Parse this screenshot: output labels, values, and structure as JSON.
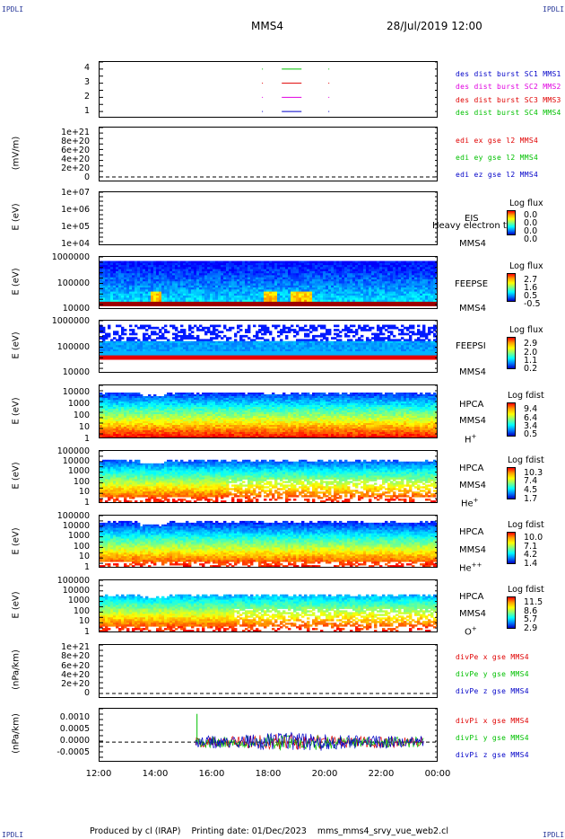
{
  "header": {
    "corner_tl": "IPDLI",
    "corner_tr": "IPDLI",
    "corner_bl": "IPDLI",
    "corner_br": "IPDLI",
    "spacecraft": "MMS4",
    "datetime": "28/Jul/2019 12:00"
  },
  "footer": {
    "text": "Produced by cl (IRAP)    Printing date: 01/Dec/2023    mms_mms4_srvy_vue_web2.cl"
  },
  "colors": {
    "blue": "#0000c8",
    "magenta": "#e000e0",
    "red": "#e00000",
    "green": "#00c000"
  },
  "xaxis": {
    "ticks": [
      "12:00",
      "14:00",
      "16:00",
      "18:00",
      "20:00",
      "22:00",
      "00:00"
    ],
    "range_hours": [
      12,
      24
    ]
  },
  "chart_data": [
    {
      "type": "line",
      "panel": "availability",
      "yticks": [
        "4",
        "3",
        "2",
        "1"
      ],
      "ylim": [
        0.5,
        4.5
      ],
      "legend": [
        {
          "text": "des dist burst SC1 MMS1",
          "color": "#0000c8"
        },
        {
          "text": "des dist burst SC2 MMS2",
          "color": "#e000e0"
        },
        {
          "text": "des dist burst SC3 MMS3",
          "color": "#e00000"
        },
        {
          "text": "des dist burst SC4 MMS4",
          "color": "#00c000"
        }
      ],
      "series": [
        {
          "name": "des dist burst SC4 MMS4",
          "y": 4,
          "segments": [
            [
              17.75,
              17.76
            ],
            [
              18.45,
              19.15
            ],
            [
              20.1,
              20.11
            ]
          ]
        },
        {
          "name": "des dist burst SC3 MMS3",
          "y": 3,
          "segments": [
            [
              17.75,
              17.76
            ],
            [
              18.45,
              19.15
            ],
            [
              20.1,
              20.11
            ]
          ]
        },
        {
          "name": "des dist burst SC2 MMS2",
          "y": 2,
          "segments": [
            [
              17.75,
              17.76
            ],
            [
              18.45,
              19.15
            ],
            [
              20.1,
              20.11
            ]
          ]
        },
        {
          "name": "des dist burst SC1 MMS1",
          "y": 1,
          "segments": [
            [
              17.75,
              17.76
            ],
            [
              18.45,
              19.15
            ],
            [
              20.1,
              20.11
            ]
          ]
        }
      ]
    },
    {
      "type": "line",
      "panel": "edi",
      "ylabel": "(mV/m)",
      "yticks": [
        "1e+21",
        "8e+20",
        "6e+20",
        "4e+20",
        "2e+20",
        "0"
      ],
      "legend": [
        {
          "text": "edi ex gse l2 MMS4",
          "color": "#e00000"
        },
        {
          "text": "edi ey gse l2 MMS4",
          "color": "#00c000"
        },
        {
          "text": "edi ez gse l2 MMS4",
          "color": "#0000c8"
        }
      ],
      "reference_line": 0
    },
    {
      "type": "heatmap",
      "panel": "eis",
      "ylabel": "E (eV)",
      "yticks": [
        "1e+07",
        "1e+06",
        "1e+05",
        "1e+04"
      ],
      "labels": [
        "EIS",
        "MMS4"
      ],
      "overlay_text": "Heavy electron to",
      "colorbar": {
        "title": "Log flux",
        "ticks": [
          "0.0",
          "0.0",
          "0.0",
          "0.0"
        ]
      }
    },
    {
      "type": "heatmap",
      "panel": "feeps_e",
      "ylabel": "E (eV)",
      "yticks": [
        "1000000",
        "100000",
        "10000"
      ],
      "labels": [
        "FEEPSE",
        "MMS4"
      ],
      "colorbar": {
        "title": "Log flux",
        "ticks": [
          "2.7",
          "1.6",
          "0.5",
          "-0.5"
        ]
      }
    },
    {
      "type": "heatmap",
      "panel": "feeps_i",
      "ylabel": "E (eV)",
      "yticks": [
        "1000000",
        "100000",
        "10000"
      ],
      "labels": [
        "FEEPSI",
        "MMS4"
      ],
      "colorbar": {
        "title": "Log flux",
        "ticks": [
          "2.9",
          "2.0",
          "1.1",
          "0.2"
        ]
      }
    },
    {
      "type": "heatmap",
      "panel": "hpca_h",
      "ylabel": "E (eV)",
      "yticks": [
        "10000",
        "1000",
        "100",
        "10",
        "1"
      ],
      "labels": [
        "HPCA",
        "MMS4",
        "H",
        "+"
      ],
      "colorbar": {
        "title": "Log fdist",
        "ticks": [
          "9.4",
          "6.4",
          "3.4",
          "0.5"
        ]
      }
    },
    {
      "type": "heatmap",
      "panel": "hpca_he",
      "ylabel": "E (eV)",
      "yticks": [
        "100000",
        "10000",
        "1000",
        "100",
        "10",
        "1"
      ],
      "labels": [
        "HPCA",
        "MMS4",
        "He",
        "+"
      ],
      "colorbar": {
        "title": "Log fdist",
        "ticks": [
          "10.3",
          "7.4",
          "4.5",
          "1.7"
        ]
      }
    },
    {
      "type": "heatmap",
      "panel": "hpca_hepp",
      "ylabel": "E (eV)",
      "yticks": [
        "100000",
        "10000",
        "1000",
        "100",
        "10",
        "1"
      ],
      "labels": [
        "HPCA",
        "MMS4",
        "He",
        "++"
      ],
      "colorbar": {
        "title": "Log fdist",
        "ticks": [
          "10.0",
          "7.1",
          "4.2",
          "1.4"
        ]
      }
    },
    {
      "type": "heatmap",
      "panel": "hpca_o",
      "ylabel": "E (eV)",
      "yticks": [
        "100000",
        "10000",
        "1000",
        "100",
        "10",
        "1"
      ],
      "labels": [
        "HPCA",
        "MMS4",
        "O",
        "+"
      ],
      "colorbar": {
        "title": "Log fdist",
        "ticks": [
          "11.5",
          "8.6",
          "5.7",
          "2.9"
        ]
      }
    },
    {
      "type": "line",
      "panel": "divpe",
      "ylabel": "(nPa/km)",
      "yticks": [
        "1e+21",
        "8e+20",
        "6e+20",
        "4e+20",
        "2e+20",
        "0"
      ],
      "legend": [
        {
          "text": "divPe x gse MMS4",
          "color": "#e00000"
        },
        {
          "text": "divPe y gse MMS4",
          "color": "#00c000"
        },
        {
          "text": "divPe z gse MMS4",
          "color": "#0000c8"
        }
      ],
      "reference_line": 0
    },
    {
      "type": "line",
      "panel": "divpi",
      "ylabel": "(nPa/km)",
      "yticks": [
        "0.0010",
        "0.0005",
        "0.0000",
        "-0.0005"
      ],
      "ylim": [
        -0.0008,
        0.0013
      ],
      "legend": [
        {
          "text": "divPi x gse MMS4",
          "color": "#e00000"
        },
        {
          "text": "divPi y gse MMS4",
          "color": "#00c000"
        },
        {
          "text": "divPi z gse MMS4",
          "color": "#0000c8"
        }
      ],
      "reference_line": 0,
      "data_span_hours": [
        15.4,
        23.5
      ],
      "spike": {
        "x": 15.45,
        "y": 0.0011
      },
      "amplitude": 0.0003
    }
  ]
}
